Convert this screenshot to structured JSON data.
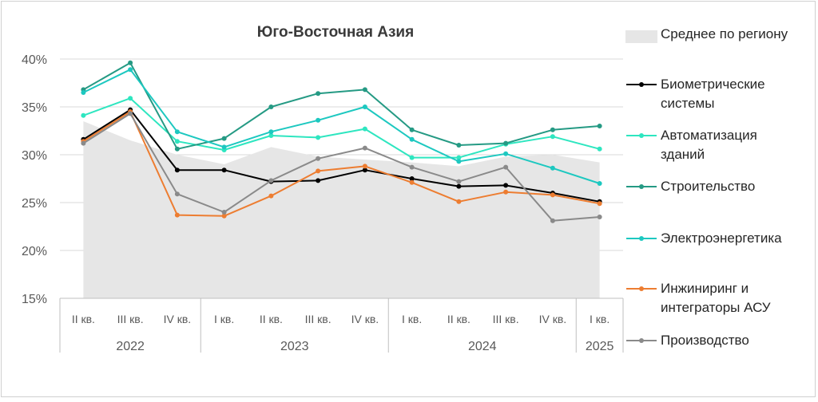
{
  "chart_data": {
    "type": "line",
    "title": "Юго-Восточная Азия",
    "xlabel": "",
    "ylabel": "",
    "ylim": [
      0.15,
      0.4
    ],
    "yticks": [
      "15%",
      "20%",
      "25%",
      "30%",
      "35%",
      "40%"
    ],
    "categories": [
      "II кв.",
      "III кв.",
      "IV кв.",
      "I кв.",
      "II кв.",
      "III кв.",
      "IV кв.",
      "I кв.",
      "II кв.",
      "III кв.",
      "IV кв.",
      "I кв."
    ],
    "year_groups": [
      {
        "label": "2022",
        "count": 3
      },
      {
        "label": "2023",
        "count": 4
      },
      {
        "label": "2024",
        "count": 4
      },
      {
        "label": "2025",
        "count": 1
      }
    ],
    "legend_position": "right",
    "area": {
      "name": "Среднее по региону",
      "color": "#e6e6e6",
      "values": [
        0.335,
        0.315,
        0.3,
        0.29,
        0.308,
        0.298,
        0.295,
        0.292,
        0.288,
        0.298,
        0.3,
        0.292
      ]
    },
    "series": [
      {
        "name": "Биометрические системы",
        "color": "#000000",
        "values": [
          0.316,
          0.347,
          0.284,
          0.284,
          0.272,
          0.273,
          0.284,
          0.275,
          0.267,
          0.268,
          0.26,
          0.251
        ]
      },
      {
        "name": "Автоматизация зданий",
        "color": "#2ee6c0",
        "values": [
          0.341,
          0.359,
          0.314,
          0.305,
          0.32,
          0.318,
          0.327,
          0.297,
          0.297,
          0.311,
          0.319,
          0.306
        ]
      },
      {
        "name": "Строительство",
        "color": "#259a84",
        "values": [
          0.368,
          0.396,
          0.306,
          0.317,
          0.35,
          0.364,
          0.368,
          0.326,
          0.31,
          0.312,
          0.326,
          0.33
        ]
      },
      {
        "name": "Электроэнергетика",
        "color": "#1dc8c0",
        "values": [
          0.365,
          0.389,
          0.324,
          0.308,
          0.324,
          0.336,
          0.35,
          0.316,
          0.293,
          0.301,
          0.286,
          0.27
        ]
      },
      {
        "name": "Инжиниринг и интеграторы АСУ",
        "color": "#ed7d31",
        "values": [
          0.314,
          0.345,
          0.237,
          0.236,
          0.257,
          0.283,
          0.288,
          0.271,
          0.251,
          0.261,
          0.258,
          0.249
        ]
      },
      {
        "name": "Производство",
        "color": "#8a8a8a",
        "values": [
          0.312,
          0.343,
          0.259,
          0.24,
          0.273,
          0.296,
          0.307,
          0.287,
          0.272,
          0.287,
          0.231,
          0.235
        ]
      }
    ],
    "legend_lines": [
      [
        "Среднее по региону"
      ],
      [
        "Биометрические",
        "системы"
      ],
      [
        "Автоматизация",
        "зданий"
      ],
      [
        "Строительство"
      ],
      [
        "Электроэнергетика"
      ],
      [
        "Инжиниринг и",
        "интеграторы АСУ"
      ],
      [
        "Производство"
      ]
    ]
  }
}
